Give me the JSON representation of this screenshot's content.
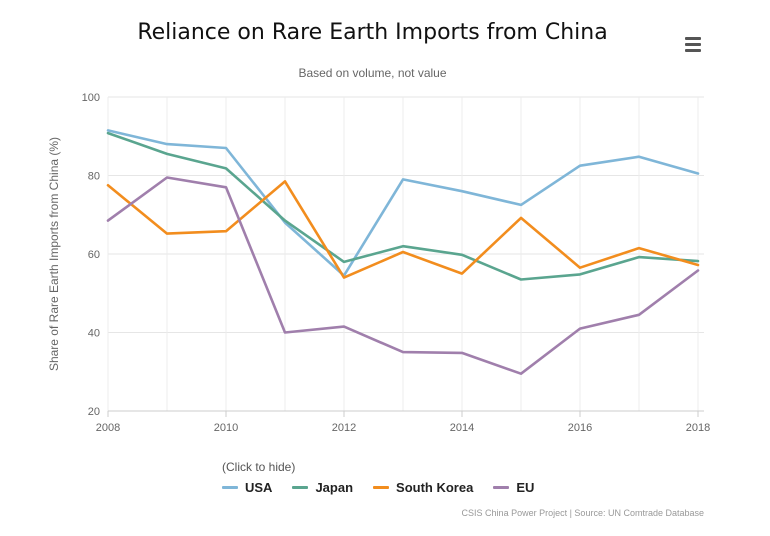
{
  "header": {
    "title": "Reliance on Rare Earth Imports from China",
    "subtitle": "Based on volume, not value",
    "menu_icon": "hamburger-menu-icon"
  },
  "legend": {
    "hint": "(Click to hide)"
  },
  "credits": "CSIS China Power Project | Source: UN Comtrade Database",
  "chart_data": {
    "type": "line",
    "title": "Reliance on Rare Earth Imports from China",
    "subtitle": "Based on volume, not value",
    "xlabel": "",
    "ylabel": "Share of Rare Earth Imports from China (%)",
    "x": [
      2008,
      2009,
      2010,
      2011,
      2012,
      2013,
      2014,
      2015,
      2016,
      2017,
      2018
    ],
    "xticks": [
      2008,
      2010,
      2012,
      2014,
      2016,
      2018
    ],
    "yticks": [
      20,
      40,
      60,
      80,
      100
    ],
    "xlim": [
      2008,
      2018
    ],
    "ylim": [
      20,
      100
    ],
    "grid": true,
    "legend_position": "bottom-left",
    "series": [
      {
        "name": "USA",
        "color": "#7fb6d8",
        "values": [
          91.5,
          88,
          87,
          68,
          54.5,
          79,
          76,
          72.5,
          82.5,
          84.8,
          80.5
        ]
      },
      {
        "name": "Japan",
        "color": "#5aa58f",
        "values": [
          90.8,
          85.5,
          81.8,
          68.5,
          58,
          62,
          59.8,
          53.5,
          54.8,
          59.2,
          58.2
        ]
      },
      {
        "name": "South Korea",
        "color": "#f28d1e",
        "values": [
          77.5,
          65.2,
          65.8,
          78.5,
          54,
          60.5,
          55,
          69.2,
          56.5,
          61.5,
          57.2
        ]
      },
      {
        "name": "EU",
        "color": "#a07fac",
        "values": [
          68.5,
          79.5,
          77,
          40,
          41.5,
          35,
          34.8,
          29.5,
          41,
          44.5,
          55.8
        ]
      }
    ]
  }
}
